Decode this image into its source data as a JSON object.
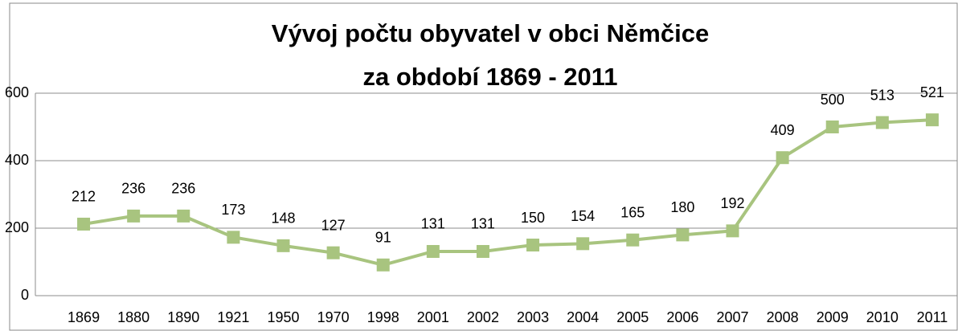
{
  "chart_data": {
    "type": "line",
    "title": [
      "Vývoj počtu obyvatel v obci Němčice",
      "za období 1869 - 2011"
    ],
    "categories": [
      "1869",
      "1880",
      "1890",
      "1921",
      "1950",
      "1970",
      "1998",
      "2001",
      "2002",
      "2003",
      "2004",
      "2005",
      "2006",
      "2007",
      "2008",
      "2009",
      "2010",
      "2011"
    ],
    "values": [
      212,
      236,
      236,
      173,
      148,
      127,
      91,
      131,
      131,
      150,
      154,
      165,
      180,
      192,
      409,
      500,
      513,
      521
    ],
    "color": "#a8c47f",
    "ylim": [
      0,
      600
    ],
    "yticks": [
      0,
      200,
      400,
      600
    ],
    "grid": true
  }
}
